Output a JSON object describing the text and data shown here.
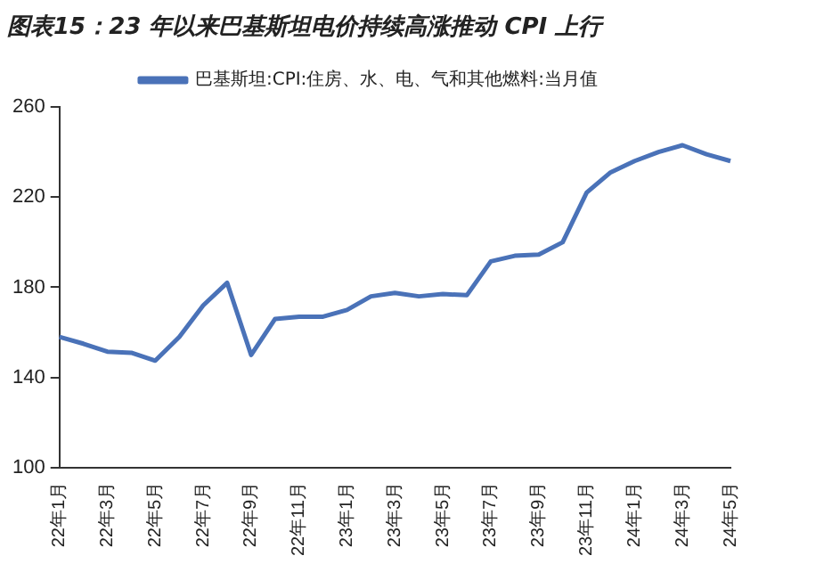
{
  "chart_data": {
    "type": "line",
    "title": "图表15：23 年以来巴基斯坦电价持续高涨推动 CPI 上行",
    "categories": [
      "22年1月",
      null,
      "22年3月",
      null,
      "22年5月",
      null,
      "22年7月",
      null,
      "22年9月",
      null,
      "22年11月",
      null,
      "23年1月",
      null,
      "23年3月",
      null,
      "23年5月",
      null,
      "23年7月",
      null,
      "23年9月",
      null,
      "23年11月",
      null,
      "24年1月",
      null,
      "24年3月",
      null,
      "24年5月"
    ],
    "series": [
      {
        "name": "巴基斯坦:CPI:住房、水、电、气和其他燃料:当月值",
        "color": "#4a72b8",
        "values": [
          158,
          155,
          151.5,
          151,
          147.5,
          158,
          172,
          182,
          150,
          166,
          167,
          167,
          170,
          176,
          177.5,
          176,
          177,
          176.5,
          191.5,
          194,
          194.5,
          200,
          222,
          231,
          236,
          240,
          243,
          239,
          236
        ]
      }
    ],
    "ylim": [
      100,
      260
    ],
    "yticks": [
      100,
      140,
      180,
      220,
      260
    ],
    "grid": false,
    "legend": "top",
    "marker": "none",
    "line_style": "solid"
  }
}
